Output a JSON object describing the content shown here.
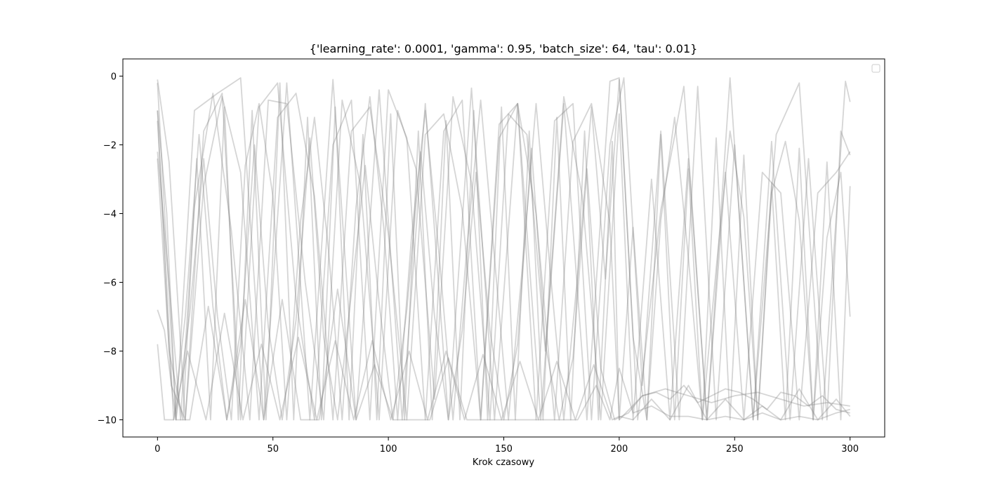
{
  "chart_data": {
    "type": "line",
    "title": "{'learning_rate': 0.0001, 'gamma': 0.95, 'batch_size': 64, 'tau': 0.01}",
    "xlabel": "Krok czasowy",
    "ylabel": "",
    "xlim": [
      -15,
      315
    ],
    "ylim": [
      -10.5,
      0.5
    ],
    "xticks": [
      0,
      50,
      100,
      150,
      200,
      250,
      300
    ],
    "yticks": [
      0,
      -2,
      -4,
      -6,
      -8,
      -10
    ],
    "legend": {
      "placement": "top-right",
      "entries": []
    },
    "grid": false,
    "line_color": "#808080",
    "line_opacity": 0.33,
    "series": [
      {
        "x": [
          0,
          5,
          12,
          20,
          28,
          36,
          44,
          52,
          60,
          68,
          76,
          84,
          92,
          100,
          108,
          116,
          124,
          132,
          140,
          148,
          156,
          164,
          172,
          180,
          188,
          196,
          200,
          210,
          220,
          230,
          240,
          250,
          260,
          270,
          280,
          290,
          300
        ],
        "y": [
          -0.1,
          -2.5,
          -10,
          -3.2,
          -0.6,
          -2.8,
          -10,
          -1.2,
          -0.5,
          -3.5,
          -10,
          -1.6,
          -0.9,
          -4.6,
          -10,
          -1.7,
          -1.1,
          -3.9,
          -10,
          -1.8,
          -0.8,
          -4.0,
          -10,
          -1.9,
          -0.8,
          -4.3,
          -10,
          -9.3,
          -9.1,
          -9.3,
          -9.5,
          -9.3,
          -9.2,
          -9.4,
          -9.6,
          -9.5,
          -9.6
        ]
      },
      {
        "x": [
          0,
          4,
          8,
          14,
          20,
          26,
          32,
          38,
          44,
          50,
          56,
          62,
          68,
          74,
          80,
          86,
          92,
          98,
          104,
          110,
          116,
          122,
          128,
          134,
          140,
          146,
          152,
          158,
          164,
          170,
          176,
          182,
          188,
          194,
          200,
          206,
          212,
          218,
          224,
          230,
          236,
          242,
          248,
          254,
          260,
          266,
          272,
          278,
          284,
          290,
          296,
          300
        ],
        "y": [
          -1.0,
          -4.0,
          -10,
          -6.9,
          -2.4,
          -7.0,
          -10,
          -2.6,
          -0.8,
          -3.5,
          -10,
          -4.2,
          -1.2,
          -5.0,
          -10,
          -3.8,
          -0.6,
          -4.4,
          -10,
          -4.7,
          -1.0,
          -5.2,
          -10,
          -5.0,
          -0.7,
          -5.3,
          -10,
          -5.6,
          -0.8,
          -5.6,
          -10,
          -5.8,
          -0.9,
          -5.9,
          -0.1,
          -7.6,
          -10,
          -4.2,
          -1.2,
          -5.3,
          -10,
          -5.6,
          -1.6,
          -4.1,
          -10,
          -3.4,
          -1.9,
          -4.2,
          -10,
          -4.7,
          -2.8,
          -7.0
        ]
      },
      {
        "x": [
          0,
          3,
          7,
          12,
          18,
          24,
          30,
          36,
          42,
          48,
          54,
          60,
          66,
          72,
          78,
          84,
          90,
          96,
          102,
          108,
          114,
          120,
          126,
          132,
          138,
          144,
          150,
          156,
          162,
          168,
          174,
          180,
          186,
          192,
          198,
          204,
          210,
          216,
          222,
          228,
          234,
          240,
          246,
          252,
          258,
          264,
          270,
          276,
          282,
          288,
          294,
          300
        ],
        "y": [
          -1.3,
          -4.8,
          -10,
          -7.0,
          -1.7,
          -6.7,
          -10,
          -7.8,
          -2.0,
          -7.3,
          -10,
          -7.1,
          -1.8,
          -7.6,
          -10,
          -6.3,
          -2.6,
          -6.6,
          -10,
          -6.8,
          -2.2,
          -7.0,
          -10,
          -7.4,
          -2.8,
          -7.4,
          -10,
          -7.8,
          -2.1,
          -7.8,
          -10,
          -8.2,
          -2.7,
          -8.5,
          -10,
          -9.8,
          -9.3,
          -9.2,
          -9.4,
          -9.0,
          -9.5,
          -9.3,
          -9.1,
          -9.2,
          -9.4,
          -9.7,
          -9.2,
          -9.3,
          -9.6,
          -9.3,
          -9.7,
          -9.8
        ]
      },
      {
        "x": [
          0,
          5,
          10,
          16,
          24,
          32,
          40,
          48,
          56,
          64,
          72,
          80,
          88,
          96,
          104,
          112,
          120,
          128,
          136,
          144,
          152,
          160,
          168,
          176,
          184,
          192,
          200,
          206,
          214,
          222,
          230,
          238,
          246,
          254,
          262,
          270,
          278,
          286,
          294,
          300
        ],
        "y": [
          -2.2,
          -6.0,
          -10,
          -3.8,
          -0.5,
          -4.5,
          -10,
          -0.7,
          -0.8,
          -6.0,
          -10,
          -0.7,
          -3.2,
          -10,
          -1.0,
          -2.7,
          -9.4,
          -0.6,
          -3.1,
          -10,
          -1.1,
          -1.7,
          -8.0,
          -0.6,
          -3.5,
          -10,
          -1.1,
          -10,
          -3.0,
          -10,
          -2.4,
          -10,
          -2.8,
          -10,
          -2.8,
          -3.4,
          -10,
          -3.4,
          -2.8,
          -2.2
        ]
      },
      {
        "x": [
          0,
          6,
          12,
          20,
          28,
          36,
          44,
          52,
          60,
          68,
          76,
          84,
          92,
          100,
          108,
          116,
          124,
          132,
          140,
          148,
          156,
          164,
          172,
          180,
          188,
          196,
          202,
          210,
          218,
          226,
          234,
          242,
          250,
          258,
          266,
          274,
          282,
          290,
          296,
          300
        ],
        "y": [
          -2.4,
          -9.0,
          -10,
          -1.6,
          -0.5,
          -10,
          -0.9,
          -0.2,
          -6.5,
          -10,
          -2.0,
          -0.7,
          -10,
          -0.4,
          -1.8,
          -10,
          -1.6,
          -0.7,
          -10,
          -1.4,
          -0.8,
          -10,
          -1.3,
          -0.8,
          -10,
          -2.0,
          -0.05,
          -9.0,
          -1.6,
          -10,
          -0.3,
          -10,
          -2.0,
          -10,
          -1.9,
          -10,
          -2.4,
          -10,
          -1.6,
          -2.3
        ]
      },
      {
        "x": [
          0,
          3,
          8,
          14,
          22,
          30,
          38,
          46,
          54,
          62,
          70,
          78,
          86,
          94,
          102,
          110,
          118,
          126,
          134,
          142,
          150,
          158,
          166,
          174,
          182,
          190,
          196,
          200,
          206,
          214,
          222,
          230,
          238,
          246,
          254,
          262,
          270,
          278,
          286,
          294,
          300
        ],
        "y": [
          -6.8,
          -7.4,
          -10,
          -10,
          -6.7,
          -10,
          -6.5,
          -10,
          -6.5,
          -10,
          -10,
          -6.2,
          -10,
          -8.4,
          -10,
          -10,
          -10,
          -8.2,
          -10,
          -10,
          -10,
          -10,
          -10,
          -10,
          -10,
          -9.0,
          -10,
          -8.5,
          -9.8,
          -9.6,
          -9.9,
          -9.9,
          -10,
          -9.9,
          -10,
          -9.8,
          -10,
          -9.9,
          -10,
          -9.8,
          -9.7
        ]
      },
      {
        "x": [
          0,
          3,
          7,
          13,
          21,
          29,
          37,
          45,
          53,
          61,
          69,
          77,
          85,
          93,
          101,
          109,
          117,
          125,
          133,
          141,
          149,
          157,
          165,
          173,
          181,
          189,
          197,
          200,
          206,
          214,
          222,
          230,
          238,
          246,
          254,
          262,
          270,
          278,
          286,
          294,
          300
        ],
        "y": [
          -7.8,
          -10,
          -10,
          -8.0,
          -10,
          -6.9,
          -10,
          -7.8,
          -10,
          -7.6,
          -10,
          -7.7,
          -10,
          -7.7,
          -10,
          -8.0,
          -10,
          -8.0,
          -10,
          -8.1,
          -10,
          -8.3,
          -10,
          -8.3,
          -10,
          -8.4,
          -10,
          -9.9,
          -10,
          -9.4,
          -10,
          -9.0,
          -10,
          -9.4,
          -10,
          -9.6,
          -10,
          -9.1,
          -10,
          -9.4,
          -9.9
        ]
      },
      {
        "x": [
          0,
          8,
          16,
          26,
          36,
          46,
          56,
          66,
          76,
          86,
          96,
          106,
          116,
          126,
          136,
          146,
          156,
          166,
          176,
          186,
          196,
          200,
          208,
          218,
          228,
          238,
          248,
          258,
          268,
          278,
          288,
          298,
          300
        ],
        "y": [
          -0.2,
          -10,
          -1.0,
          -0.5,
          -0.05,
          -10,
          -0.2,
          -10,
          -0.1,
          -10,
          -0.4,
          -10,
          -0.8,
          -10,
          -0.35,
          -10,
          -0.8,
          -10,
          -0.8,
          -10,
          -0.15,
          -0.05,
          -10,
          -3.9,
          -0.3,
          -10,
          -0.05,
          -10,
          -1.7,
          -0.2,
          -10,
          -0.15,
          -0.75
        ]
      },
      {
        "x": [
          0,
          5,
          11,
          17,
          23,
          29,
          35,
          41,
          47,
          53,
          59,
          65,
          71,
          77,
          83,
          89,
          95,
          101,
          107,
          113,
          119,
          125,
          131,
          137,
          143,
          149,
          155,
          161,
          167,
          173,
          179,
          185,
          191,
          197,
          200,
          206,
          212,
          218,
          224,
          230,
          236,
          242,
          248,
          254,
          260,
          266,
          272,
          278,
          284,
          290,
          296,
          300
        ],
        "y": [
          -1.0,
          -8.0,
          -10,
          -2.4,
          -10,
          -0.9,
          -10,
          -1.0,
          -10,
          -0.2,
          -10,
          -1.2,
          -10,
          -0.9,
          -10,
          -1.7,
          -10,
          -1.1,
          -10,
          -1.6,
          -10,
          -1.3,
          -10,
          -1.0,
          -10,
          -0.9,
          -10,
          -1.6,
          -10,
          -1.2,
          -10,
          -1.6,
          -10,
          -1.9,
          -10,
          -4.4,
          -10,
          -1.7,
          -10,
          -2.7,
          -10,
          -1.8,
          -10,
          -2.3,
          -10,
          -3.1,
          -10,
          -2.1,
          -10,
          -2.5,
          -10,
          -3.2
        ]
      }
    ]
  }
}
